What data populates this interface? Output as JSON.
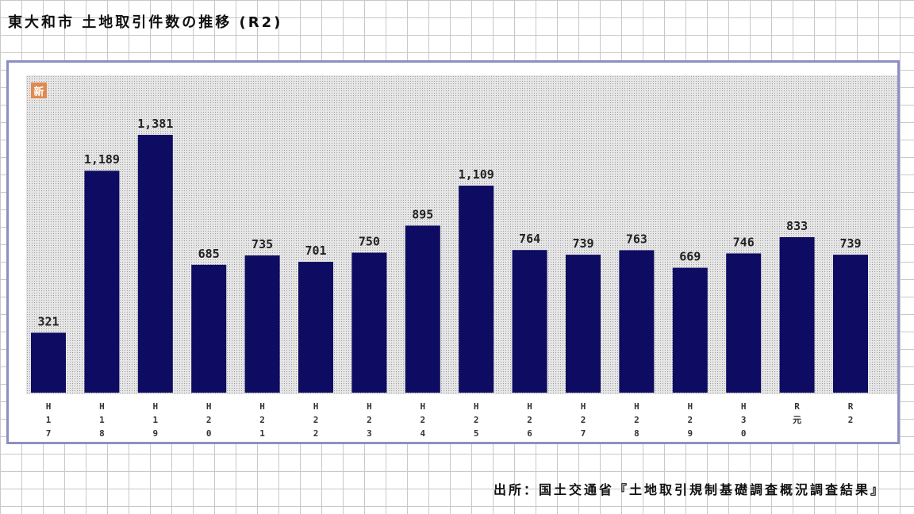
{
  "title": "東大和市 土地取引件数の推移 (R2)",
  "badge": "新",
  "source": "出所：国土交通省『土地取引規制基礎調査概況調査結果』",
  "colors": {
    "bar": "#0d0b62",
    "frame": "#8c8fc4"
  },
  "chart_data": {
    "type": "bar",
    "categories": [
      "H17",
      "H18",
      "H19",
      "H20",
      "H21",
      "H22",
      "H23",
      "H24",
      "H25",
      "H26",
      "H27",
      "H28",
      "H29",
      "H30",
      "R元",
      "R2"
    ],
    "tick_labels": [
      [
        "H",
        "1",
        "7"
      ],
      [
        "H",
        "1",
        "8"
      ],
      [
        "H",
        "1",
        "9"
      ],
      [
        "H",
        "2",
        "0"
      ],
      [
        "H",
        "2",
        "1"
      ],
      [
        "H",
        "2",
        "2"
      ],
      [
        "H",
        "2",
        "3"
      ],
      [
        "H",
        "2",
        "4"
      ],
      [
        "H",
        "2",
        "5"
      ],
      [
        "H",
        "2",
        "6"
      ],
      [
        "H",
        "2",
        "7"
      ],
      [
        "H",
        "2",
        "8"
      ],
      [
        "H",
        "2",
        "9"
      ],
      [
        "H",
        "3",
        "0"
      ],
      [
        "R",
        "元"
      ],
      [
        "R",
        "2"
      ]
    ],
    "values": [
      321,
      1189,
      1381,
      685,
      735,
      701,
      750,
      895,
      1109,
      764,
      739,
      763,
      669,
      746,
      833,
      739
    ],
    "value_labels": [
      "321",
      "1,189",
      "1,381",
      "685",
      "735",
      "701",
      "750",
      "895",
      "1,109",
      "764",
      "739",
      "763",
      "669",
      "746",
      "833",
      "739"
    ],
    "ylim": [
      0,
      1700
    ],
    "grid": false
  }
}
